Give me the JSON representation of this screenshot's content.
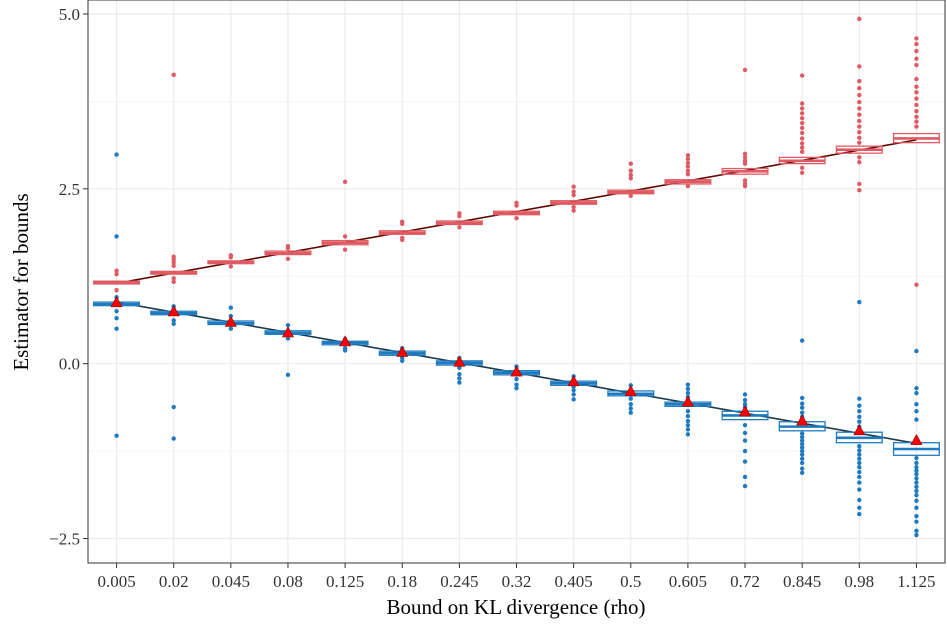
{
  "chart_data": {
    "type": "box",
    "title": "",
    "xlabel": "Bound on KL divergence (rho)",
    "ylabel": "Estimator for bounds",
    "categories": [
      "0.005",
      "0.02",
      "0.045",
      "0.08",
      "0.125",
      "0.18",
      "0.245",
      "0.32",
      "0.405",
      "0.5",
      "0.605",
      "0.72",
      "0.845",
      "0.98",
      "1.125"
    ],
    "ylim": [
      -2.85,
      5.2
    ],
    "yticks": [
      -2.5,
      0.0,
      2.5,
      5.0
    ],
    "ytick_labels": [
      "−2.5",
      "0.0",
      "2.5",
      "5.0"
    ],
    "grid": true,
    "series": [
      {
        "role": "upper",
        "color": "#e05a63",
        "line_color": "#5c0a00",
        "medians": [
          1.16,
          1.3,
          1.45,
          1.58,
          1.73,
          1.87,
          2.01,
          2.15,
          2.3,
          2.45,
          2.6,
          2.75,
          2.9,
          3.06,
          3.22
        ],
        "q1": [
          1.14,
          1.28,
          1.43,
          1.56,
          1.7,
          1.85,
          1.99,
          2.13,
          2.28,
          2.43,
          2.57,
          2.71,
          2.86,
          3.01,
          3.16
        ],
        "q3": [
          1.18,
          1.32,
          1.47,
          1.61,
          1.76,
          1.9,
          2.04,
          2.18,
          2.33,
          2.48,
          2.63,
          2.79,
          2.95,
          3.11,
          3.29
        ],
        "line": [
          1.15,
          3.2
        ],
        "outliers": [
          [
            1.33,
            1.28,
            1.05
          ],
          [
            4.13,
            1.53,
            1.49,
            1.45,
            1.4,
            1.22,
            1.17
          ],
          [
            1.55,
            1.52,
            1.39
          ],
          [
            1.68,
            1.65,
            1.5
          ],
          [
            2.6,
            1.82,
            1.63
          ],
          [
            2.03,
            2.0,
            1.8,
            1.77
          ],
          [
            2.15,
            2.11,
            1.95
          ],
          [
            2.3,
            2.26,
            2.08
          ],
          [
            2.53,
            2.46,
            2.41,
            2.24,
            2.19
          ],
          [
            2.86,
            2.76,
            2.7,
            2.65,
            2.4
          ],
          [
            2.98,
            2.93,
            2.87,
            2.82,
            2.76,
            2.71,
            2.54
          ],
          [
            4.2,
            3.0,
            2.95,
            2.9,
            2.86,
            2.62,
            2.57,
            2.54
          ],
          [
            4.12,
            3.72,
            3.65,
            3.58,
            3.51,
            3.44,
            3.37,
            3.3,
            3.22,
            3.15,
            3.09,
            3.03,
            2.8,
            2.73
          ],
          [
            4.93,
            4.25,
            4.04,
            3.94,
            3.84,
            3.74,
            3.65,
            3.56,
            3.47,
            3.39,
            3.31,
            3.23,
            3.16,
            2.95,
            2.88,
            2.57,
            2.48
          ],
          [
            4.65,
            4.57,
            4.47,
            4.36,
            4.27,
            4.07,
            3.96,
            3.88,
            3.79,
            3.7,
            3.61,
            3.53,
            3.46,
            3.39,
            1.13
          ]
        ]
      },
      {
        "role": "lower",
        "color": "#1f7bbf",
        "line_color": "#1a3a4a",
        "medians": [
          0.85,
          0.72,
          0.58,
          0.44,
          0.3,
          0.15,
          0.01,
          -0.13,
          -0.28,
          -0.43,
          -0.58,
          -0.74,
          -0.9,
          -1.06,
          -1.22
        ],
        "q1": [
          0.83,
          0.7,
          0.56,
          0.42,
          0.27,
          0.12,
          -0.02,
          -0.16,
          -0.31,
          -0.46,
          -0.61,
          -0.8,
          -0.96,
          -1.13,
          -1.31
        ],
        "q3": [
          0.88,
          0.75,
          0.61,
          0.47,
          0.32,
          0.18,
          0.04,
          -0.1,
          -0.25,
          -0.39,
          -0.55,
          -0.68,
          -0.83,
          -0.98,
          -1.13
        ],
        "line": [
          0.88,
          -1.14
        ],
        "outliers": [
          [
            2.99,
            1.82,
            0.95,
            0.75,
            0.65,
            0.5,
            -1.03
          ],
          [
            0.82,
            0.78,
            0.62,
            0.57,
            -0.62,
            -1.07
          ],
          [
            0.8,
            0.68,
            0.5
          ],
          [
            0.55,
            0.36,
            -0.16
          ],
          [
            0.35,
            0.22,
            0.19
          ],
          [
            0.22,
            0.08,
            0.04
          ],
          [
            0.08,
            -0.06,
            -0.15,
            -0.21,
            -0.27
          ],
          [
            -0.04,
            -0.22,
            -0.3,
            -0.35
          ],
          [
            -0.18,
            -0.33,
            -0.38,
            -0.44,
            -0.51
          ],
          [
            -0.31,
            -0.5,
            -0.58,
            -0.64,
            -0.7
          ],
          [
            -0.3,
            -0.36,
            -0.42,
            -0.48,
            -0.68,
            -0.75,
            -0.82,
            -0.88,
            -0.94,
            -1.01
          ],
          [
            -0.44,
            -0.52,
            -0.58,
            -0.62,
            -0.88,
            -0.99,
            -1.1,
            -1.25,
            -1.4,
            -1.62,
            -1.75
          ],
          [
            0.33,
            -0.49,
            -0.57,
            -0.63,
            -0.7,
            -0.76,
            -1.0,
            -1.05,
            -1.1,
            -1.15,
            -1.2,
            -1.25,
            -1.3,
            -1.36,
            -1.42,
            -1.5,
            -1.56
          ],
          [
            0.88,
            -0.5,
            -0.6,
            -0.68,
            -0.76,
            -0.83,
            -0.9,
            -1.18,
            -1.24,
            -1.3,
            -1.36,
            -1.42,
            -1.48,
            -1.55,
            -1.62,
            -1.7,
            -1.8,
            -1.95,
            -2.06,
            -2.15
          ],
          [
            0.18,
            -0.35,
            -0.42,
            -0.58,
            -0.68,
            -0.8,
            -1.35,
            -1.42,
            -1.48,
            -1.53,
            -1.58,
            -1.64,
            -1.7,
            -1.76,
            -1.82,
            -1.88,
            -1.96,
            -2.06,
            -2.18,
            -2.26,
            -2.39,
            -2.45
          ]
        ]
      }
    ],
    "mean_markers": {
      "color": "#ff0000",
      "values": [
        0.87,
        0.74,
        0.59,
        0.44,
        0.31,
        0.16,
        0.02,
        -0.12,
        -0.26,
        -0.4,
        -0.55,
        -0.69,
        -0.82,
        -0.96,
        -1.1
      ]
    }
  }
}
